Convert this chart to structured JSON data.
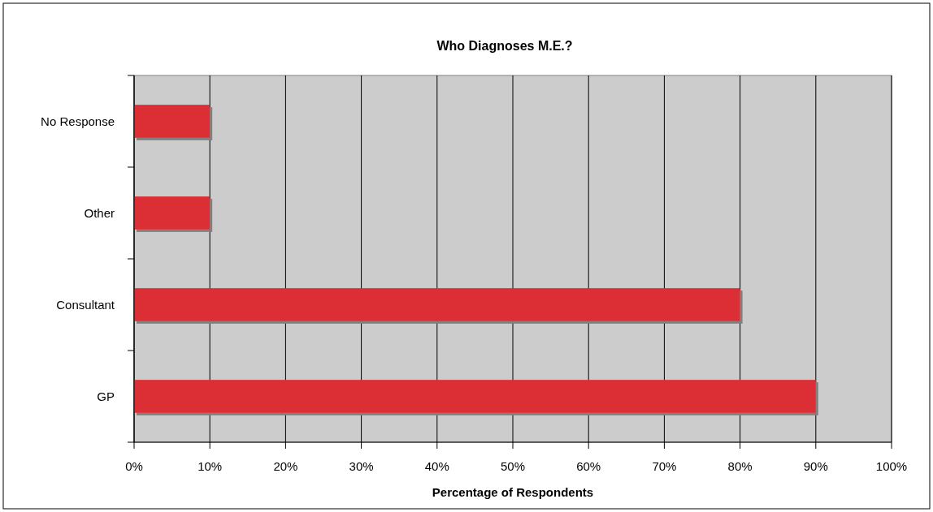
{
  "chart_data": {
    "type": "bar",
    "orientation": "horizontal",
    "title": "Who Diagnoses M.E.?",
    "xlabel": "Percentage of Respondents",
    "categories": [
      "No Response",
      "Other",
      "Consultant",
      "GP"
    ],
    "values": [
      10,
      10,
      80,
      90
    ],
    "color": "#dc2f34",
    "xlim": [
      0,
      100
    ],
    "xticks": [
      {
        "value": 0,
        "label": "0%"
      },
      {
        "value": 10,
        "label": "10%"
      },
      {
        "value": 20,
        "label": "20%"
      },
      {
        "value": 30,
        "label": "30%"
      },
      {
        "value": 40,
        "label": "40%"
      },
      {
        "value": 50,
        "label": "50%"
      },
      {
        "value": 60,
        "label": "60%"
      },
      {
        "value": 70,
        "label": "70%"
      },
      {
        "value": 80,
        "label": "80%"
      },
      {
        "value": 90,
        "label": "90%"
      },
      {
        "value": 100,
        "label": "100%"
      }
    ],
    "grid": "x"
  }
}
